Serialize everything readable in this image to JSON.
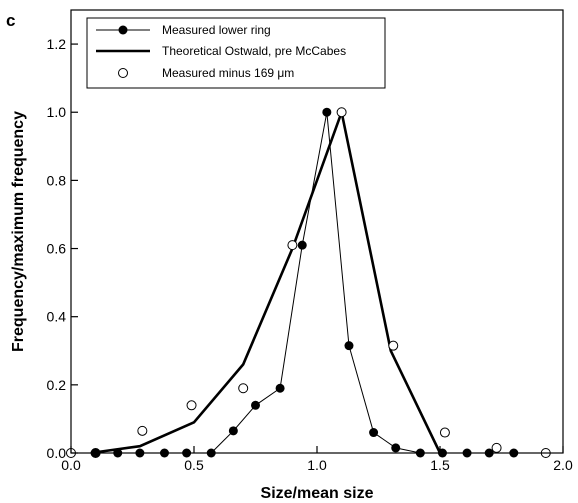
{
  "panel_label": "c",
  "chart_data": {
    "type": "line",
    "xlabel": "Size/mean  size",
    "ylabel": "Frequency/maximum  frequency",
    "xlim": [
      0.0,
      2.0
    ],
    "ylim": [
      0.0,
      1.3
    ],
    "x_ticks": [
      0.0,
      0.5,
      1.0,
      1.5,
      2.0
    ],
    "x_tick_labels": [
      "0.0",
      "0.5",
      "1.0",
      "1.5",
      "2.0"
    ],
    "y_ticks": [
      0.0,
      0.2,
      0.4,
      0.6,
      0.8,
      1.0,
      1.2
    ],
    "y_tick_labels": [
      "0.0",
      "0.2",
      "0.4",
      "0.6",
      "0.8",
      "1.0",
      "1.2"
    ],
    "legend_position": "top-left",
    "series": [
      {
        "name": "Measured lower ring",
        "style": "line-filled-markers",
        "color": "#000000",
        "x": [
          0.1,
          0.19,
          0.28,
          0.38,
          0.47,
          0.57,
          0.66,
          0.75,
          0.85,
          0.94,
          1.04,
          1.13,
          1.23,
          1.32,
          1.42,
          1.51,
          1.61,
          1.7,
          1.8
        ],
        "y": [
          0.0,
          0.0,
          0.0,
          0.0,
          0.0,
          0.0,
          0.065,
          0.14,
          0.19,
          0.61,
          1.0,
          0.315,
          0.06,
          0.015,
          0.0,
          0.0,
          0.0,
          0.0,
          0.0
        ]
      },
      {
        "name": "Theoretical Ostwald, pre McCabes",
        "style": "thick-line",
        "color": "#000000",
        "x": [
          0.08,
          0.28,
          0.5,
          0.7,
          0.9,
          1.1,
          1.3,
          1.5
        ],
        "y": [
          0.0,
          0.02,
          0.09,
          0.26,
          0.6,
          1.0,
          0.3,
          0.0
        ]
      },
      {
        "name": "Measured minus 169 μm",
        "style": "open-markers",
        "color": "#000000",
        "x": [
          0.0,
          0.1,
          0.29,
          0.49,
          0.7,
          0.9,
          1.1,
          1.31,
          1.52,
          1.73,
          1.93
        ],
        "y": [
          0.0,
          0.0,
          0.065,
          0.14,
          0.19,
          0.61,
          1.0,
          0.315,
          0.06,
          0.015,
          0.0
        ]
      }
    ]
  }
}
